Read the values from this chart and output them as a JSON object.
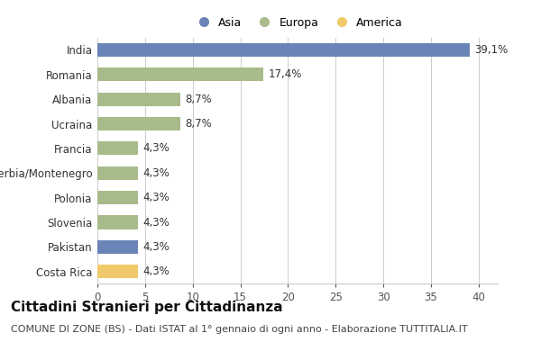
{
  "countries": [
    "India",
    "Romania",
    "Albania",
    "Ucraina",
    "Francia",
    "Serbia/Montenegro",
    "Polonia",
    "Slovenia",
    "Pakistan",
    "Costa Rica"
  ],
  "values": [
    39.1,
    17.4,
    8.7,
    8.7,
    4.3,
    4.3,
    4.3,
    4.3,
    4.3,
    4.3
  ],
  "labels": [
    "39,1%",
    "17,4%",
    "8,7%",
    "8,7%",
    "4,3%",
    "4,3%",
    "4,3%",
    "4,3%",
    "4,3%",
    "4,3%"
  ],
  "continents": [
    "Asia",
    "Europa",
    "Europa",
    "Europa",
    "Europa",
    "Europa",
    "Europa",
    "Europa",
    "Asia",
    "America"
  ],
  "colors": {
    "Asia": "#6b84b8",
    "Europa": "#a8bb8a",
    "America": "#f0c96a"
  },
  "xlim": [
    0,
    42
  ],
  "xticks": [
    0,
    5,
    10,
    15,
    20,
    25,
    30,
    35,
    40
  ],
  "title": "Cittadini Stranieri per Cittadinanza",
  "subtitle": "COMUNE DI ZONE (BS) - Dati ISTAT al 1° gennaio di ogni anno - Elaborazione TUTTITALIA.IT",
  "background_color": "#ffffff",
  "bar_height": 0.55,
  "grid_color": "#cccccc",
  "label_fontsize": 8.5,
  "title_fontsize": 11,
  "subtitle_fontsize": 8
}
